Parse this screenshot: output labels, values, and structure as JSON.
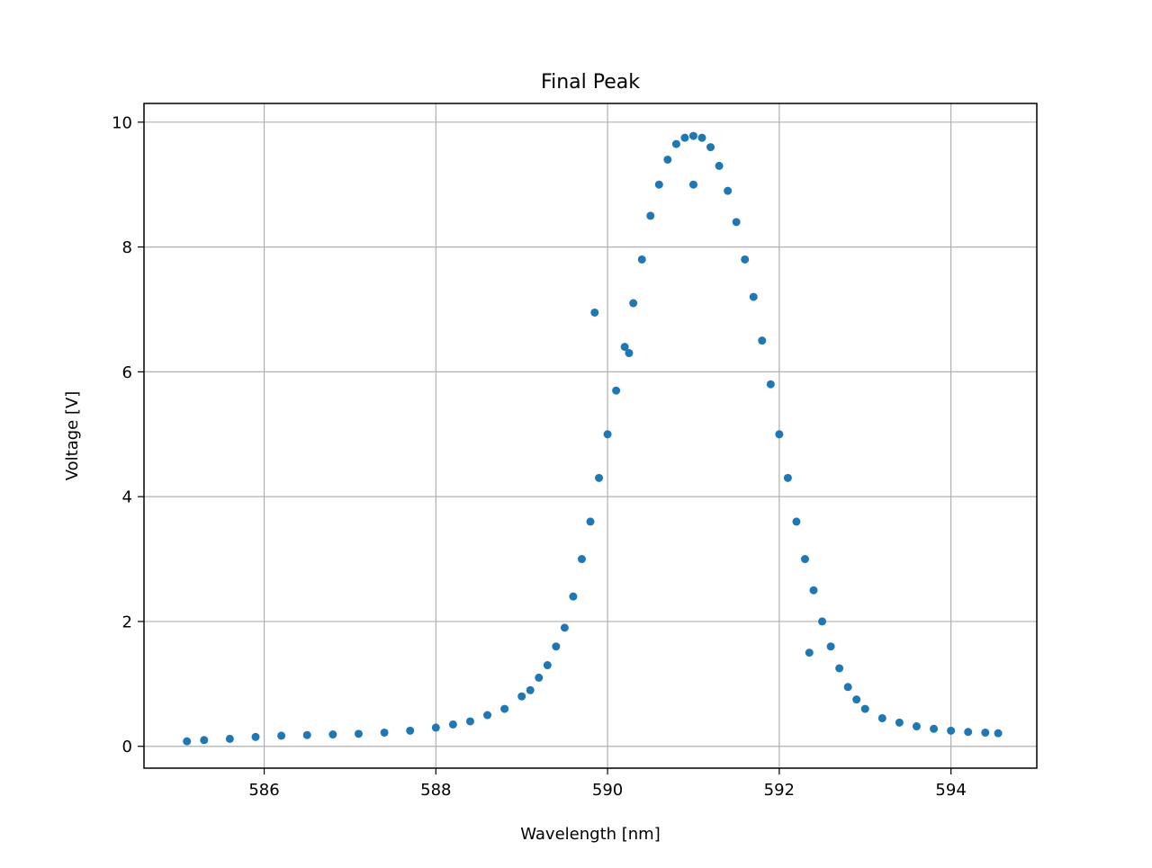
{
  "chart_data": {
    "type": "scatter",
    "title": "Final Peak",
    "xlabel": "Wavelength [nm]",
    "ylabel": "Voltage [V]",
    "xlim": [
      584.6,
      595.0
    ],
    "ylim": [
      -0.35,
      10.3
    ],
    "xticks": [
      586,
      588,
      590,
      592,
      594
    ],
    "xtick_labels": [
      "586",
      "588",
      "590",
      "592",
      "594"
    ],
    "yticks": [
      0,
      2,
      4,
      6,
      8,
      10
    ],
    "ytick_labels": [
      "0",
      "2",
      "4",
      "6",
      "8",
      "10"
    ],
    "grid": true,
    "marker_color": "#1f77b4",
    "series": [
      {
        "x": [
          585.1,
          585.3,
          585.6,
          585.9,
          586.2,
          586.5,
          586.8,
          587.1,
          587.4,
          587.7,
          588.0,
          588.2,
          588.4,
          588.6,
          588.8,
          589.0,
          589.1,
          589.2,
          589.3,
          589.4,
          589.5,
          589.6,
          589.7,
          589.8,
          589.9,
          590.0,
          590.1,
          590.2,
          590.3,
          590.4,
          590.5,
          590.6,
          590.7,
          590.8,
          590.9,
          591.0,
          591.1,
          591.2,
          591.3,
          591.4,
          591.5,
          591.6,
          591.7,
          591.8,
          591.9,
          592.0,
          592.1,
          592.2,
          592.3,
          592.4,
          592.5,
          592.6,
          592.7,
          592.8,
          592.9,
          593.0,
          593.2,
          593.4,
          593.6,
          593.8,
          594.0,
          594.2,
          594.4,
          594.55,
          589.85,
          590.25,
          592.35,
          591.0
        ],
        "y": [
          0.08,
          0.1,
          0.12,
          0.15,
          0.17,
          0.18,
          0.19,
          0.2,
          0.22,
          0.25,
          0.3,
          0.35,
          0.4,
          0.5,
          0.6,
          0.8,
          0.9,
          1.1,
          1.3,
          1.6,
          1.9,
          2.4,
          3.0,
          3.6,
          4.3,
          5.0,
          5.7,
          6.4,
          7.1,
          7.8,
          8.5,
          9.0,
          9.4,
          9.65,
          9.75,
          9.78,
          9.75,
          9.6,
          9.3,
          8.9,
          8.4,
          7.8,
          7.2,
          6.5,
          5.8,
          5.0,
          4.3,
          3.6,
          3.0,
          2.5,
          2.0,
          1.6,
          1.25,
          0.95,
          0.75,
          0.6,
          0.45,
          0.38,
          0.32,
          0.28,
          0.25,
          0.23,
          0.22,
          0.21,
          6.95,
          6.3,
          1.5,
          9.0
        ]
      }
    ]
  }
}
